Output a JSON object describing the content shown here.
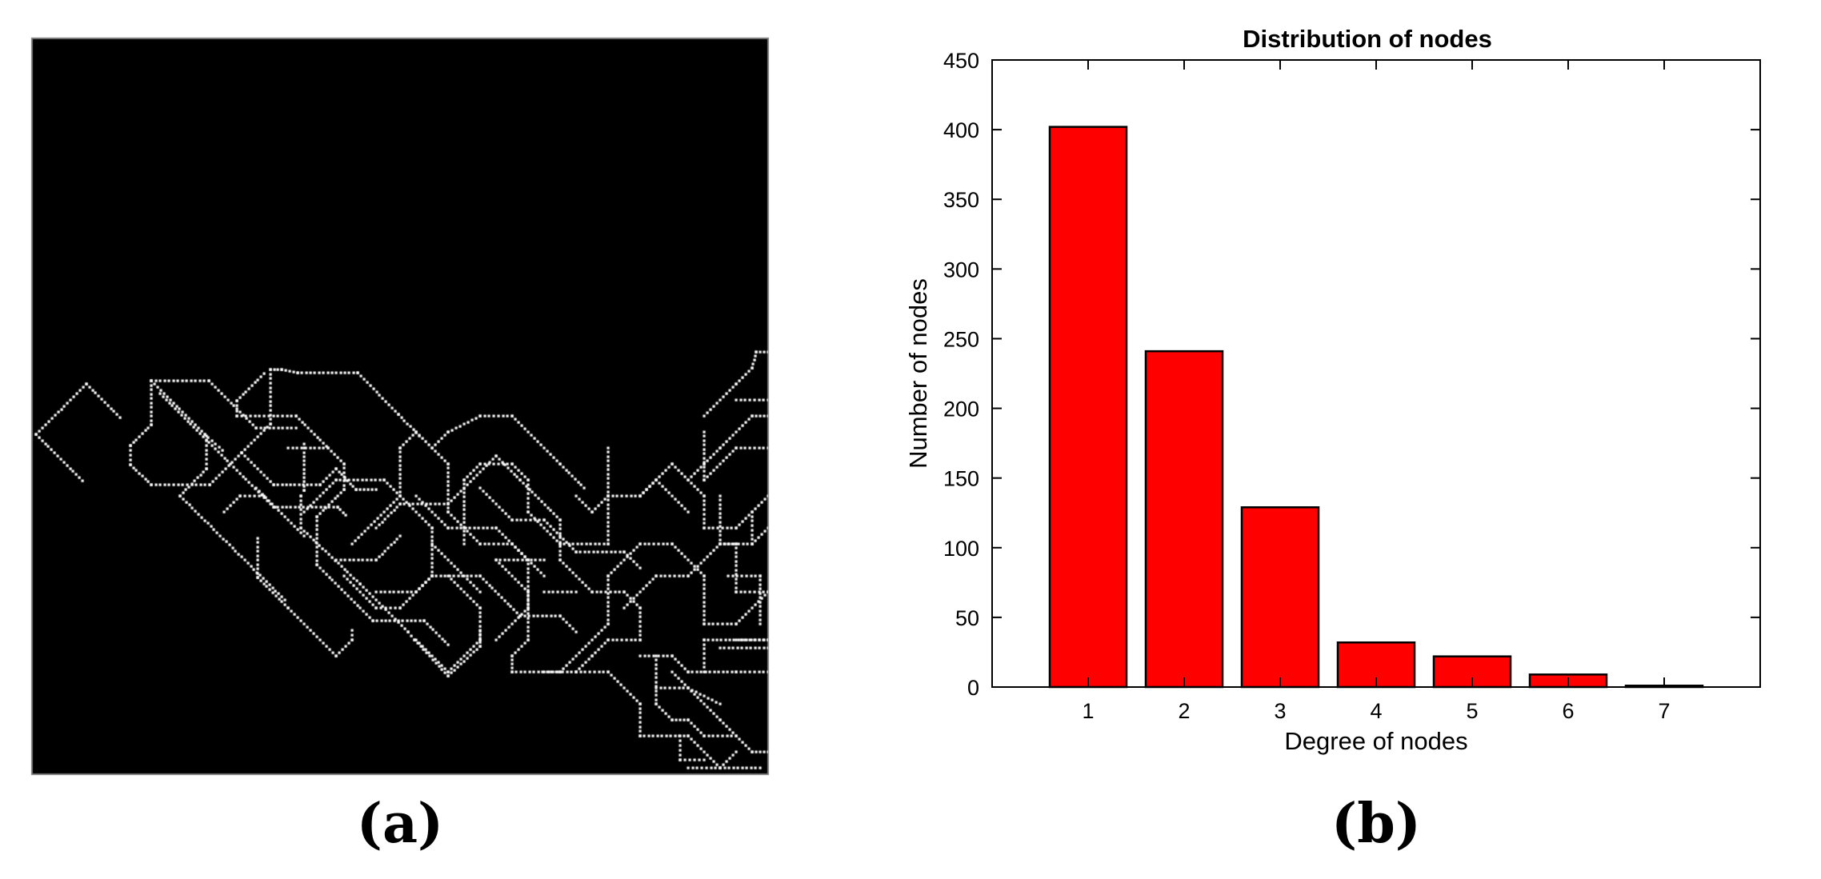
{
  "panels": {
    "a": {
      "label": "(a)"
    },
    "b": {
      "label": "(b)"
    }
  },
  "colors": {
    "bar_fill": "#ff0000",
    "bar_stroke": "#000000",
    "image_background": "#000000",
    "skeleton_dots": "#ffffff"
  },
  "chart_data": {
    "type": "bar",
    "title": "Distribution of nodes",
    "xlabel": "Degree of nodes",
    "ylabel": "Number of nodes",
    "categories": [
      "1",
      "2",
      "3",
      "4",
      "5",
      "6",
      "7"
    ],
    "values": [
      402,
      241,
      129,
      32,
      22,
      9,
      1
    ],
    "ylim": [
      0,
      450
    ],
    "yticks": [
      "0",
      "50",
      "100",
      "150",
      "200",
      "250",
      "300",
      "350",
      "400",
      "450"
    ],
    "xlim": [
      0,
      8
    ],
    "grid": false,
    "legend": "none"
  }
}
